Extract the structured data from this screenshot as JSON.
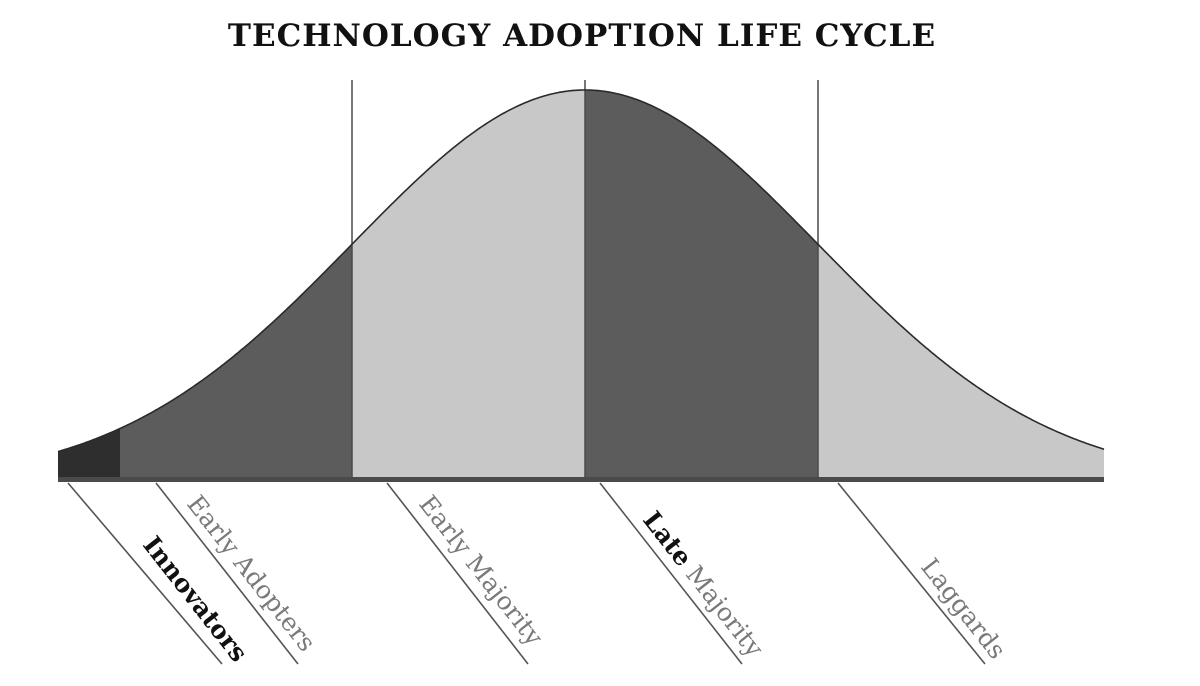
{
  "title": "TECHNOLOGY ADOPTION LIFE CYCLE",
  "colors": {
    "dark_fill": "#5c5c5c",
    "light_fill": "#c8c8c8",
    "innovators_fill": "#2e2e2e",
    "outline": "#2a2a2a",
    "label_gray": "#7a7a7a",
    "label_dark": "#111111"
  },
  "segments": [
    {
      "key": "innovators",
      "label": "Innovators",
      "fill": "innovators",
      "share_percent": 2.5
    },
    {
      "key": "early_adopters",
      "label": "Early Adopters",
      "fill": "dark",
      "share_percent": 13.5
    },
    {
      "key": "early_majority",
      "label": "Early Majority",
      "fill": "light",
      "share_percent": 34
    },
    {
      "key": "late_majority",
      "label_bold": "Late",
      "label_rest": " Majority",
      "fill": "dark",
      "share_percent": 34
    },
    {
      "key": "laggards",
      "label": "Laggards",
      "fill": "light",
      "share_percent": 16
    }
  ]
}
